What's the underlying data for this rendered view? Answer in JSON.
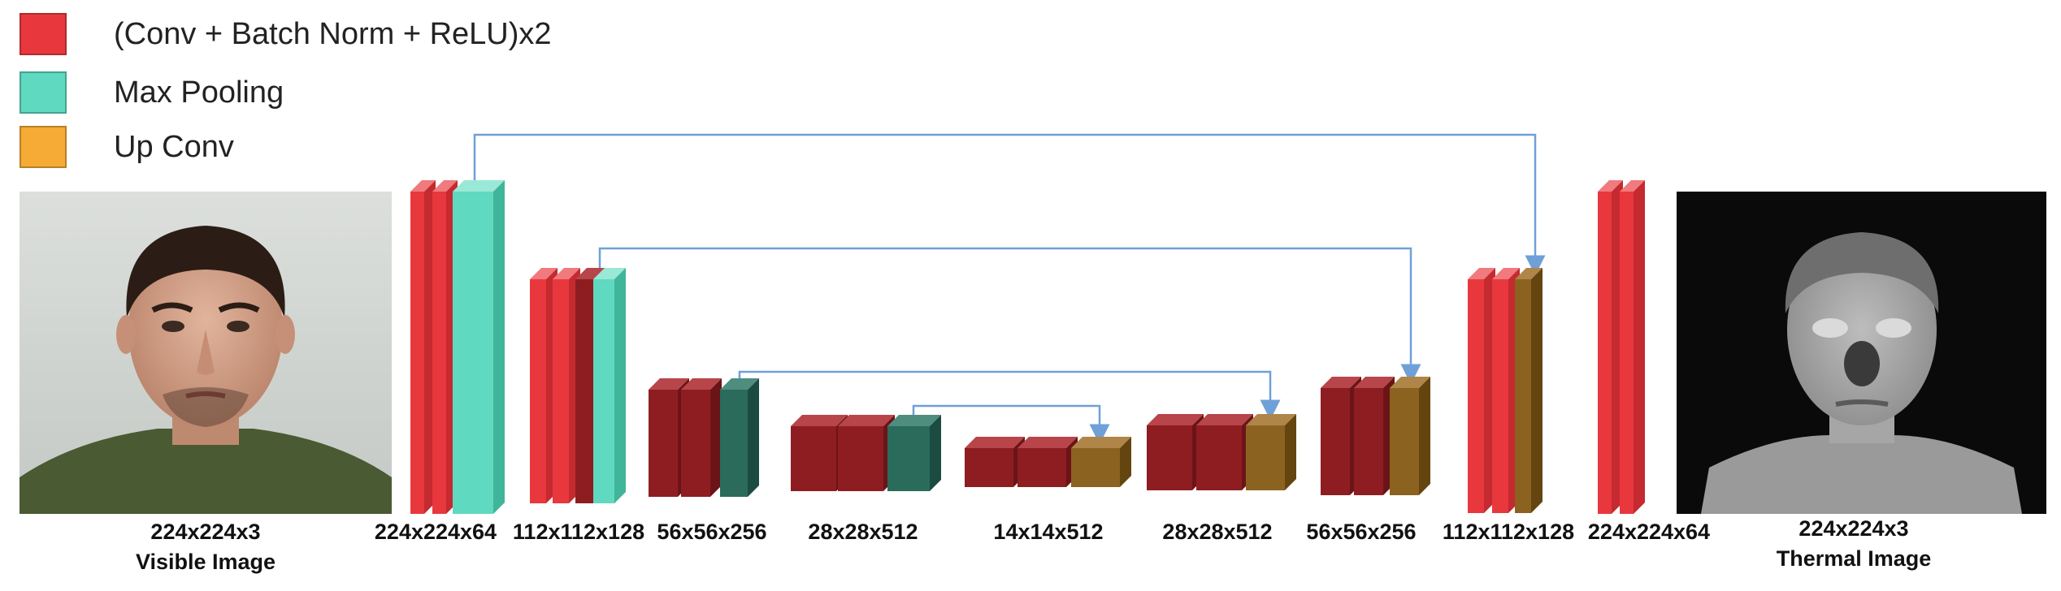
{
  "legend": [
    {
      "label": "(Conv + Batch Norm + ReLU)x2",
      "color": "#e8383d"
    },
    {
      "label": "Max Pooling",
      "color": "#5fd9bf"
    },
    {
      "label": "Up Conv",
      "color": "#f5ab35"
    }
  ],
  "input": {
    "size": "224x224x3",
    "name": "Visible Image"
  },
  "output": {
    "size": "224x224x3",
    "name": "Thermal Image"
  },
  "stage_labels": [
    "224x224x64",
    "112x112x128",
    "56x56x256",
    "28x28x512",
    "14x14x512",
    "28x28x512",
    "56x56x256",
    "112x112x128",
    "224x224x64"
  ],
  "colors": {
    "conv_light": "#e8383d",
    "conv_dark": "#8e1d22",
    "pool_light": "#5fd9bf",
    "pool_dark": "#2a6b5c",
    "upconv_light": "#f5ab35",
    "upconv_dark": "#8c6220",
    "skip_arrow": "#6fa0d8"
  }
}
